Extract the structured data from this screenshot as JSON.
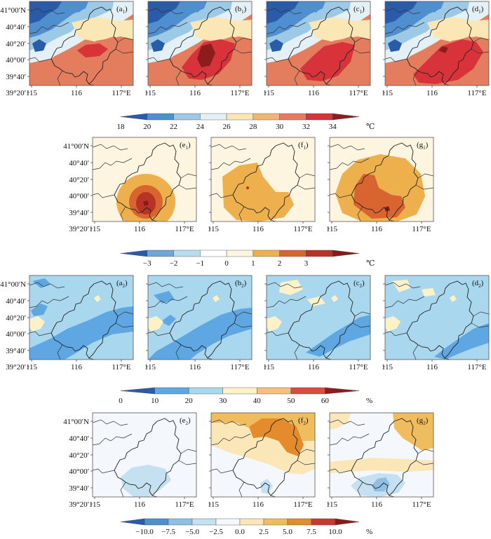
{
  "lat_labels": [
    "41°00′N",
    "40°40′",
    "40°20′",
    "40°00′",
    "39°40′",
    "39°20′"
  ],
  "lon_labels": [
    "115",
    "116",
    "117°E"
  ],
  "rows": [
    {
      "id": "row1",
      "panels": [
        {
          "id": "a1",
          "label": "(a",
          "sub": "1",
          "variant": "temp",
          "stage": 0
        },
        {
          "id": "b1",
          "label": "(b",
          "sub": "1",
          "variant": "temp",
          "stage": 1
        },
        {
          "id": "c1",
          "label": "(c",
          "sub": "1",
          "variant": "temp",
          "stage": 2
        },
        {
          "id": "d1",
          "label": "(d",
          "sub": "1",
          "variant": "temp",
          "stage": 3
        }
      ]
    },
    {
      "id": "row2",
      "panels": [
        {
          "id": "e1",
          "label": "(e",
          "sub": "1",
          "variant": "tdiff",
          "stage": 0
        },
        {
          "id": "f1",
          "label": "(f",
          "sub": "1",
          "variant": "tdiff",
          "stage": 1
        },
        {
          "id": "g1",
          "label": "(g",
          "sub": "1",
          "variant": "tdiff",
          "stage": 2
        }
      ]
    },
    {
      "id": "row3",
      "panels": [
        {
          "id": "a2",
          "label": "(a",
          "sub": "2",
          "variant": "rh",
          "stage": 0
        },
        {
          "id": "b2",
          "label": "(b",
          "sub": "2",
          "variant": "rh",
          "stage": 1
        },
        {
          "id": "c2",
          "label": "(c",
          "sub": "2",
          "variant": "rh",
          "stage": 2
        },
        {
          "id": "d2",
          "label": "(d",
          "sub": "2",
          "variant": "rh",
          "stage": 3
        }
      ]
    },
    {
      "id": "row4",
      "panels": [
        {
          "id": "e2",
          "label": "(e",
          "sub": "2",
          "variant": "rhdiff",
          "stage": 0
        },
        {
          "id": "f2",
          "label": "(f",
          "sub": "2",
          "variant": "rhdiff",
          "stage": 1
        },
        {
          "id": "g2",
          "label": "(g",
          "sub": "2",
          "variant": "rhdiff",
          "stage": 2
        }
      ]
    }
  ],
  "colorbars": [
    {
      "id": "temp-colorbar",
      "colors": [
        "#2a5ba8",
        "#4f8fcf",
        "#9cc9e6",
        "#e3f1f6",
        "#fbe7b6",
        "#f3b576",
        "#e47d5d",
        "#d8323a",
        "#8f1c1c"
      ],
      "ticks": [
        "18",
        "20",
        "22",
        "24",
        "26",
        "28",
        "30",
        "32",
        "34"
      ],
      "unit": "℃"
    },
    {
      "id": "tdiff-colorbar",
      "colors": [
        "#2a5ba8",
        "#6ea6d8",
        "#b9dcef",
        "#fefefe",
        "#fdf5df",
        "#edb04c",
        "#d8642f",
        "#b83225",
        "#8a1a1a"
      ],
      "ticks": [
        "−3",
        "−2",
        "−1",
        "0",
        "1",
        "2",
        "3"
      ],
      "unit": "℃"
    },
    {
      "id": "rh-colorbar",
      "colors": [
        "#2a5ba8",
        "#5ea7e3",
        "#a9d7ee",
        "#fdf2c7",
        "#f6bf7f",
        "#e04a3e",
        "#8f1c1c"
      ],
      "ticks": [
        "0",
        "10",
        "20",
        "30",
        "40",
        "50",
        "60"
      ],
      "unit": "%"
    },
    {
      "id": "rhdiff-colorbar",
      "colors": [
        "#2a5ba8",
        "#4f8fcf",
        "#8fc0e4",
        "#c4e0f1",
        "#f4f8fc",
        "#fbe6b8",
        "#f0bd5e",
        "#e48b2c",
        "#c53a2a",
        "#8a1a1a"
      ],
      "ticks": [
        "−10.0",
        "−7.5",
        "−5.0",
        "−2.5",
        "0.0",
        "2.5",
        "5.0",
        "7.5",
        "10.0"
      ],
      "unit": "%"
    }
  ]
}
